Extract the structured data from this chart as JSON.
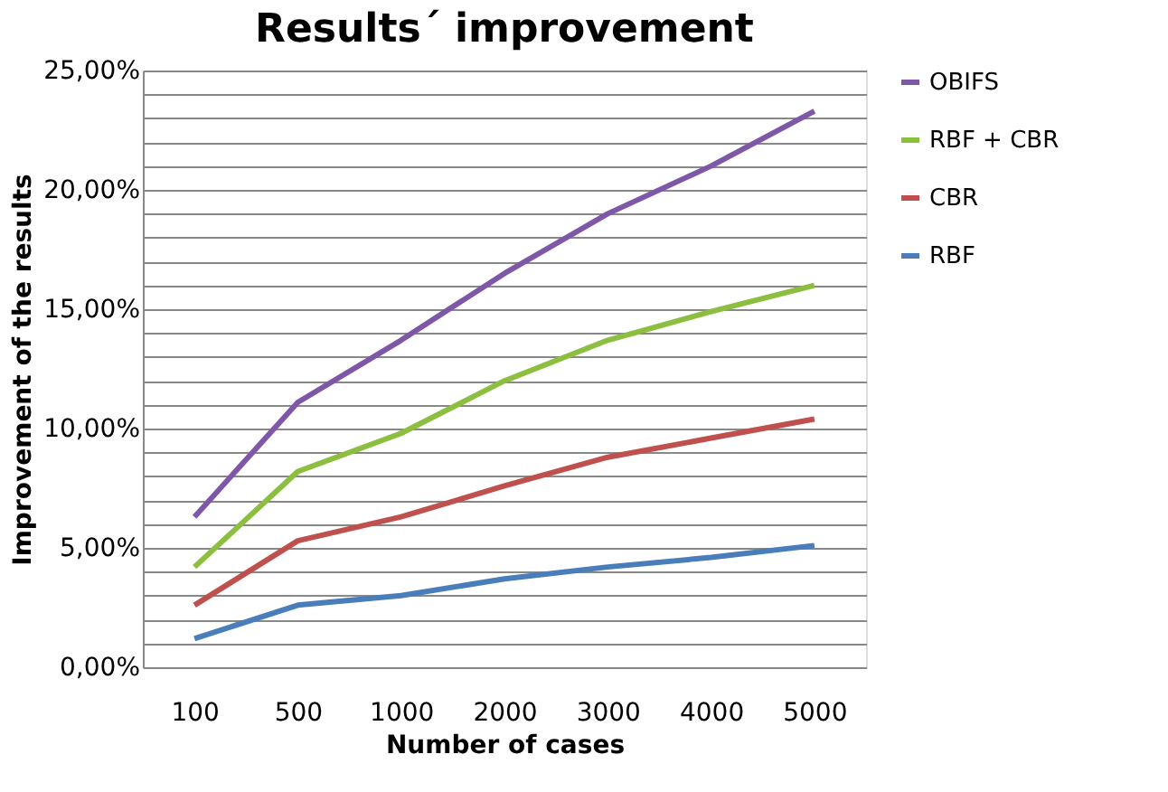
{
  "chart_data": {
    "type": "line",
    "title": "Results´ improvement",
    "xlabel": "Number of cases",
    "ylabel": "Improvement of the results",
    "categories": [
      "100",
      "500",
      "1000",
      "2000",
      "3000",
      "4000",
      "5000"
    ],
    "series": [
      {
        "name": "OBIFS",
        "color": "#7e57a8",
        "values": [
          6.3,
          11.1,
          13.7,
          16.5,
          19.0,
          21.0,
          23.3
        ]
      },
      {
        "name": "RBF + CBR",
        "color": "#8cbf3f",
        "values": [
          4.2,
          8.2,
          9.8,
          12.0,
          13.7,
          14.9,
          16.0
        ]
      },
      {
        "name": "CBR",
        "color": "#c0504d",
        "values": [
          2.6,
          5.3,
          6.3,
          7.6,
          8.8,
          9.6,
          10.4
        ]
      },
      {
        "name": "RBF",
        "color": "#4a7ebb",
        "values": [
          1.2,
          2.6,
          3.0,
          3.7,
          4.2,
          4.6,
          5.1
        ]
      }
    ],
    "ylim": [
      0,
      25
    ],
    "yticks": [
      {
        "value": 0,
        "label": "0,00%"
      },
      {
        "value": 1,
        "label": null
      },
      {
        "value": 2,
        "label": null
      },
      {
        "value": 3,
        "label": null
      },
      {
        "value": 4,
        "label": null
      },
      {
        "value": 5,
        "label": "5,00%"
      },
      {
        "value": 6,
        "label": null
      },
      {
        "value": 7,
        "label": null
      },
      {
        "value": 8,
        "label": null
      },
      {
        "value": 9,
        "label": null
      },
      {
        "value": 10,
        "label": "10,00%"
      },
      {
        "value": 11,
        "label": null
      },
      {
        "value": 12,
        "label": null
      },
      {
        "value": 13,
        "label": null
      },
      {
        "value": 14,
        "label": null
      },
      {
        "value": 15,
        "label": "15,00%"
      },
      {
        "value": 16,
        "label": null
      },
      {
        "value": 17,
        "label": null
      },
      {
        "value": 18,
        "label": null
      },
      {
        "value": 19,
        "label": null
      },
      {
        "value": 20,
        "label": "20,00%"
      },
      {
        "value": 21,
        "label": null
      },
      {
        "value": 22,
        "label": null
      },
      {
        "value": 23,
        "label": null
      },
      {
        "value": 24,
        "label": null
      },
      {
        "value": 25,
        "label": "25,00%"
      }
    ],
    "grid": "y",
    "legend": "right",
    "marker": "none",
    "line_style": "solid"
  }
}
